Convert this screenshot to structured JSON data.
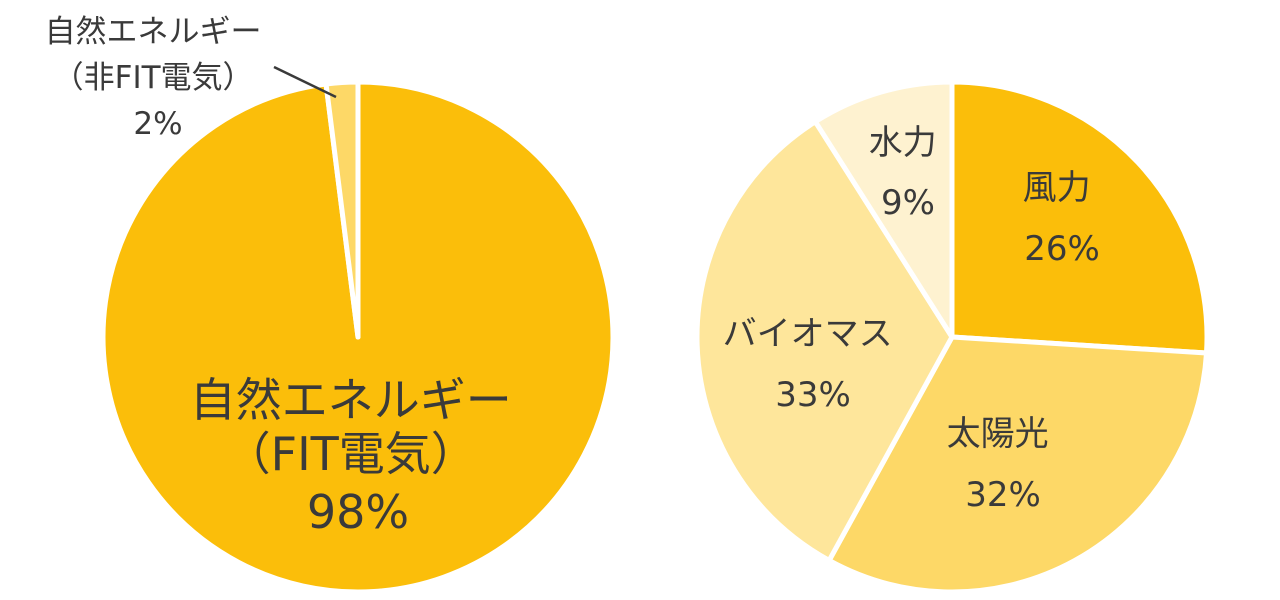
{
  "chart_data": [
    {
      "type": "pie",
      "start_angle_deg": 0,
      "direction": "clockwise",
      "slices": [
        {
          "label_lines": [
            "自然エネルギー",
            "（FIT電気）"
          ],
          "percent_label": "98%",
          "value": 98,
          "color": "#FBBE0A"
        },
        {
          "label_lines": [
            "自然エネルギー",
            "（非FIT電気）"
          ],
          "percent_label": "2%",
          "value": 2,
          "color": "#FDD867"
        }
      ]
    },
    {
      "type": "pie",
      "start_angle_deg": 0,
      "direction": "clockwise",
      "slices": [
        {
          "label_lines": [
            "風力"
          ],
          "percent_label": "26%",
          "value": 26,
          "color": "#FBBE0A"
        },
        {
          "label_lines": [
            "太陽光"
          ],
          "percent_label": "32%",
          "value": 32,
          "color": "#FDD867"
        },
        {
          "label_lines": [
            "バイオマス"
          ],
          "percent_label": "33%",
          "value": 33,
          "color": "#FEE69B"
        },
        {
          "label_lines": [
            "水力"
          ],
          "percent_label": "9%",
          "value": 9,
          "color": "#FEF2D0"
        }
      ]
    }
  ]
}
